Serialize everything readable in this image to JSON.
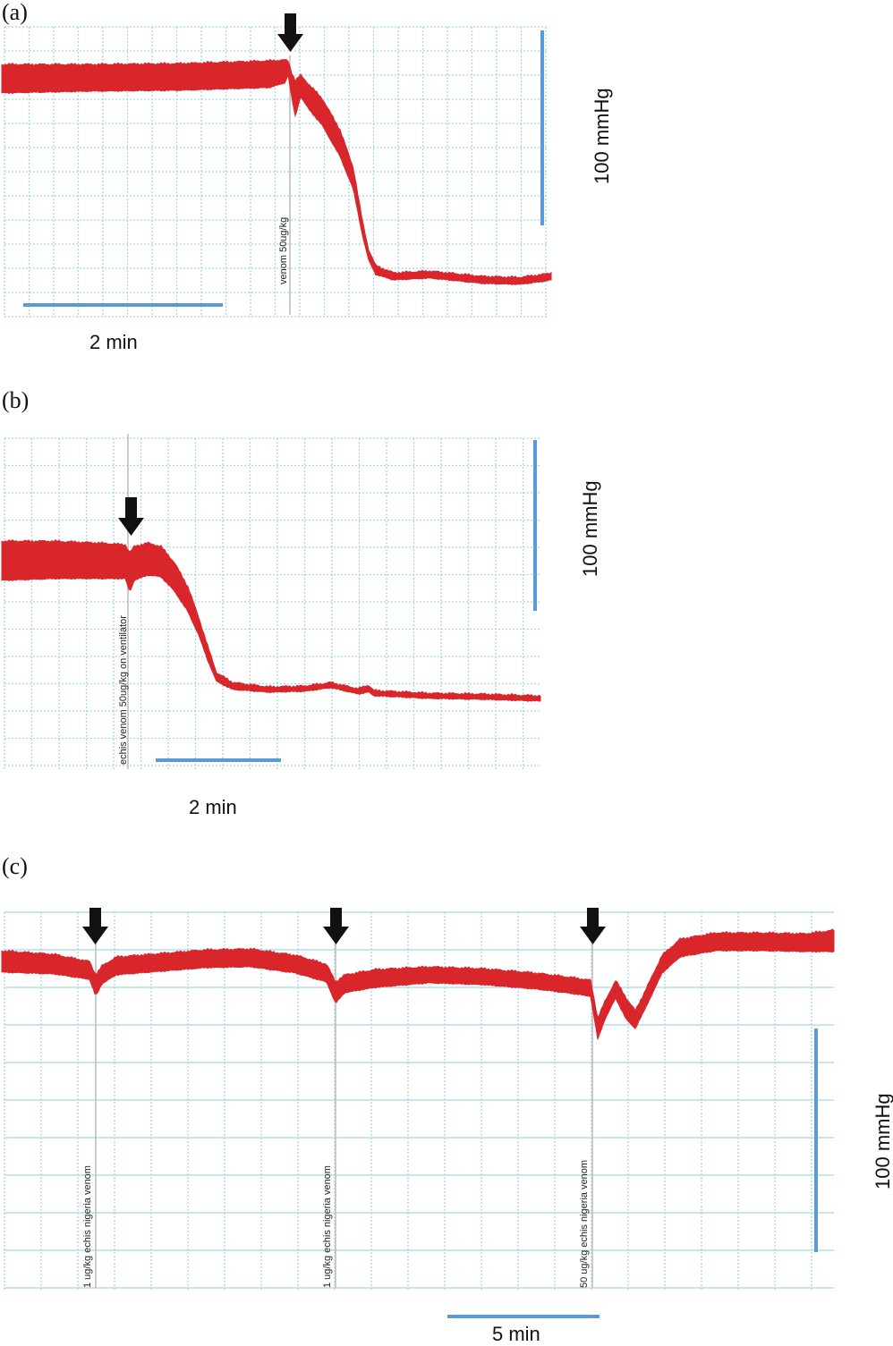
{
  "chart_data": [
    {
      "type": "line",
      "panel_label": "(a)",
      "y_scale_label": "100 mmHg",
      "x_scale_label": "2 min",
      "grid": true,
      "color": "#d8262b",
      "events": [
        {
          "label": "venom 50ug/kg"
        }
      ]
    },
    {
      "type": "line",
      "panel_label": "(b)",
      "y_scale_label": "100 mmHg",
      "x_scale_label": "2 min",
      "grid": true,
      "color": "#d8262b",
      "events": [
        {
          "label": "echis venom 50ug/kg on ventilator"
        }
      ]
    },
    {
      "type": "line",
      "panel_label": "(c)",
      "y_scale_label": "100 mmHg",
      "x_scale_label": "5 min",
      "grid": true,
      "color": "#d8262b",
      "events": [
        {
          "label": "1 ug/kg echis nigeria venom"
        },
        {
          "label": "1 ug/kg echis nigeria venom"
        },
        {
          "label": "50 ug/kg echis nigeria venom"
        }
      ]
    }
  ],
  "colors": {
    "trace": "#d8262b",
    "scale_bar": "#5b9bd5",
    "grid": "#a9d6e5",
    "arrow": "#111111"
  }
}
